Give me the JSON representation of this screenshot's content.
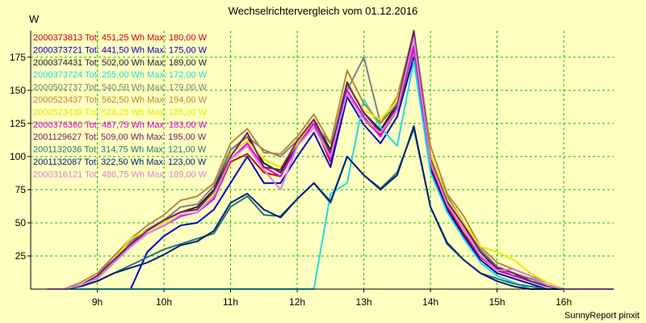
{
  "chart_data": {
    "type": "line",
    "title": "Wechselrichtervergleich vom 01.12.2016",
    "ylabel": "W",
    "xlabel": "",
    "footer": "SunnyReport pinxit",
    "x_ticks": [
      "9h",
      "10h",
      "11h",
      "12h",
      "13h",
      "14h",
      "15h",
      "16h"
    ],
    "y_ticks": [
      "25",
      "50",
      "75",
      "100",
      "125",
      "150",
      "175"
    ],
    "xlim": [
      8.0,
      16.75
    ],
    "ylim": [
      0,
      195
    ],
    "grid": true,
    "legend_position": "top-left",
    "x": [
      8.25,
      8.5,
      8.75,
      9.0,
      9.25,
      9.5,
      9.75,
      10.0,
      10.25,
      10.5,
      10.75,
      11.0,
      11.25,
      11.5,
      11.75,
      12.0,
      12.25,
      12.5,
      12.75,
      13.0,
      13.25,
      13.5,
      13.75,
      14.0,
      14.25,
      14.5,
      14.75,
      15.0,
      15.25,
      15.5,
      15.75,
      16.0,
      16.25,
      16.5,
      16.75
    ],
    "series": [
      {
        "name": "2000373813 Tot: 451,25 Wh Max: 180,00 W",
        "color": "#d00000",
        "values": [
          0,
          0,
          3,
          8,
          20,
          32,
          42,
          48,
          55,
          58,
          68,
          96,
          102,
          88,
          85,
          108,
          125,
          96,
          148,
          128,
          116,
          135,
          180,
          92,
          62,
          42,
          24,
          14,
          10,
          8,
          3,
          0,
          0,
          0,
          0
        ]
      },
      {
        "name": "2000373721 Tot: 441,50 Wh Max: 175,00 W",
        "color": "#0000c8",
        "values": [
          0,
          0,
          0,
          0,
          0,
          0,
          28,
          40,
          48,
          50,
          60,
          80,
          100,
          80,
          80,
          100,
          118,
          92,
          145,
          124,
          110,
          130,
          175,
          90,
          60,
          40,
          22,
          12,
          8,
          4,
          0,
          0,
          0,
          0,
          0
        ]
      },
      {
        "name": "2000374431 Tot: 502,00 Wh Max: 189,00 W",
        "color": "#202020",
        "values": [
          0,
          0,
          3,
          10,
          22,
          34,
          45,
          52,
          58,
          62,
          75,
          105,
          115,
          95,
          88,
          110,
          128,
          105,
          156,
          133,
          120,
          140,
          189,
          100,
          68,
          48,
          28,
          15,
          10,
          6,
          2,
          0,
          0,
          0,
          0
        ]
      },
      {
        "name": "2000373724 Tot: 255,00 Wh Max: 172,00 W",
        "color": "#20d8e8",
        "values": [
          0,
          0,
          0,
          0,
          0,
          0,
          0,
          0,
          0,
          0,
          0,
          0,
          0,
          0,
          0,
          0,
          0,
          72,
          80,
          143,
          122,
          108,
          172,
          88,
          58,
          38,
          20,
          10,
          5,
          0,
          0,
          0,
          0,
          0,
          0
        ]
      },
      {
        "name": "2000502737 Tot: 540,50 Wh Max: 179,00 W",
        "color": "#808080",
        "values": [
          0,
          0,
          3,
          10,
          25,
          36,
          45,
          52,
          62,
          64,
          78,
          105,
          115,
          105,
          100,
          112,
          125,
          110,
          150,
          175,
          125,
          140,
          179,
          100,
          70,
          50,
          30,
          17,
          12,
          8,
          3,
          0,
          0,
          0,
          0
        ]
      },
      {
        "name": "2000523437 Tot: 562,50 Wh Max: 194,00 W",
        "color": "#b88838",
        "values": [
          0,
          0,
          5,
          12,
          25,
          38,
          48,
          56,
          67,
          70,
          80,
          110,
          121,
          103,
          102,
          115,
          132,
          110,
          165,
          140,
          125,
          145,
          194,
          108,
          72,
          55,
          32,
          20,
          15,
          10,
          5,
          0,
          0,
          0,
          0
        ]
      },
      {
        "name": "2000523439 Tot: 528,25 Wh Max: 185,00 W",
        "color": "#e8e800",
        "values": [
          0,
          0,
          3,
          8,
          22,
          38,
          44,
          50,
          58,
          60,
          72,
          102,
          112,
          98,
          92,
          110,
          128,
          100,
          155,
          135,
          128,
          142,
          185,
          102,
          68,
          50,
          32,
          28,
          22,
          12,
          5,
          0,
          0,
          0,
          0
        ]
      },
      {
        "name": "2000376360 Tot: 487,75 Wh Max: 183,00 W",
        "color": "#e000e0",
        "values": [
          0,
          0,
          3,
          8,
          20,
          33,
          42,
          48,
          55,
          58,
          68,
          98,
          110,
          92,
          85,
          108,
          125,
          98,
          150,
          130,
          115,
          138,
          183,
          96,
          64,
          45,
          25,
          15,
          10,
          6,
          2,
          0,
          0,
          0,
          0
        ]
      },
      {
        "name": "2001129627 Tot: 509,00 Wh Max: 195,00 W",
        "color": "#702070",
        "values": [
          0,
          0,
          3,
          10,
          22,
          34,
          44,
          52,
          58,
          60,
          74,
          100,
          118,
          92,
          90,
          112,
          128,
          102,
          155,
          133,
          118,
          138,
          195,
          98,
          66,
          48,
          28,
          16,
          12,
          6,
          2,
          0,
          0,
          0,
          0
        ]
      },
      {
        "name": "2001132036 Tot: 314,75 Wh Max: 121,00 W",
        "color": "#207870",
        "values": [
          0,
          0,
          2,
          6,
          12,
          18,
          24,
          30,
          34,
          38,
          42,
          62,
          70,
          56,
          55,
          68,
          80,
          65,
          100,
          86,
          76,
          88,
          121,
          62,
          34,
          22,
          12,
          8,
          4,
          2,
          0,
          0,
          0,
          0,
          0
        ]
      },
      {
        "name": "2001132087 Tot: 322,50 Wh Max: 123,00 W",
        "color": "#002080",
        "values": [
          0,
          0,
          2,
          6,
          12,
          16,
          20,
          26,
          33,
          36,
          44,
          65,
          72,
          60,
          54,
          68,
          80,
          66,
          100,
          86,
          75,
          86,
          123,
          62,
          35,
          22,
          12,
          6,
          2,
          0,
          0,
          0,
          0,
          0,
          0
        ]
      },
      {
        "name": "2000316121 Tot: 486,75 Wh Max: 189,00 W",
        "color": "#d880e0",
        "values": [
          0,
          0,
          3,
          8,
          20,
          32,
          42,
          48,
          56,
          58,
          70,
          98,
          108,
          90,
          75,
          108,
          122,
          100,
          148,
          128,
          118,
          135,
          189,
          96,
          64,
          45,
          25,
          14,
          15,
          10,
          3,
          0,
          0,
          0,
          0
        ]
      }
    ]
  }
}
